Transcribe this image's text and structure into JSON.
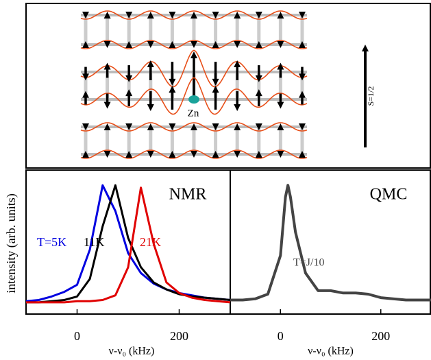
{
  "diagram": {
    "impurity": "Zn",
    "spin_label": "S=1/2"
  },
  "chart_data": [
    {
      "type": "line",
      "title": "NMR",
      "xlabel": "ν-ν₀ (kHz)",
      "ylabel": "intensity (arb. units)",
      "x": [
        -100,
        -75,
        -50,
        -25,
        0,
        25,
        50,
        75,
        100,
        125,
        150,
        175,
        200,
        225,
        250,
        275,
        300
      ],
      "series": [
        {
          "name": "T=5K",
          "color": "#0000e0",
          "values": [
            0.01,
            0.02,
            0.05,
            0.09,
            0.15,
            0.45,
            1.0,
            0.78,
            0.42,
            0.25,
            0.16,
            0.11,
            0.08,
            0.06,
            0.04,
            0.03,
            0.02
          ]
        },
        {
          "name": "11K",
          "color": "#000000",
          "values": [
            0,
            0,
            0.01,
            0.02,
            0.05,
            0.2,
            0.65,
            1.0,
            0.55,
            0.3,
            0.17,
            0.11,
            0.07,
            0.05,
            0.04,
            0.03,
            0.02
          ]
        },
        {
          "name": "21K",
          "color": "#e00000",
          "values": [
            0,
            0,
            0,
            0,
            0.01,
            0.01,
            0.02,
            0.06,
            0.3,
            0.98,
            0.5,
            0.17,
            0.08,
            0.04,
            0.02,
            0.01,
            0
          ]
        }
      ],
      "xlim": [
        -100,
        300
      ],
      "xticks": [
        0,
        200
      ],
      "ylim": [
        -0.1,
        1.13
      ]
    },
    {
      "type": "line",
      "title": "QMC",
      "xlabel": "ν-ν₀ (kHz)",
      "annotation": "T=J/10",
      "x": [
        -100,
        -75,
        -50,
        -25,
        0,
        10,
        15,
        20,
        30,
        50,
        75,
        100,
        125,
        150,
        175,
        200,
        250,
        300
      ],
      "series": [
        {
          "color": "#444444",
          "values": [
            0.02,
            0.02,
            0.03,
            0.07,
            0.4,
            0.9,
            1.0,
            0.9,
            0.6,
            0.25,
            0.1,
            0.1,
            0.08,
            0.08,
            0.07,
            0.04,
            0.02,
            0.02
          ]
        }
      ],
      "xlim": [
        -100,
        300
      ],
      "xticks": [
        0,
        200
      ],
      "ylim": [
        -0.1,
        1.13
      ]
    }
  ]
}
